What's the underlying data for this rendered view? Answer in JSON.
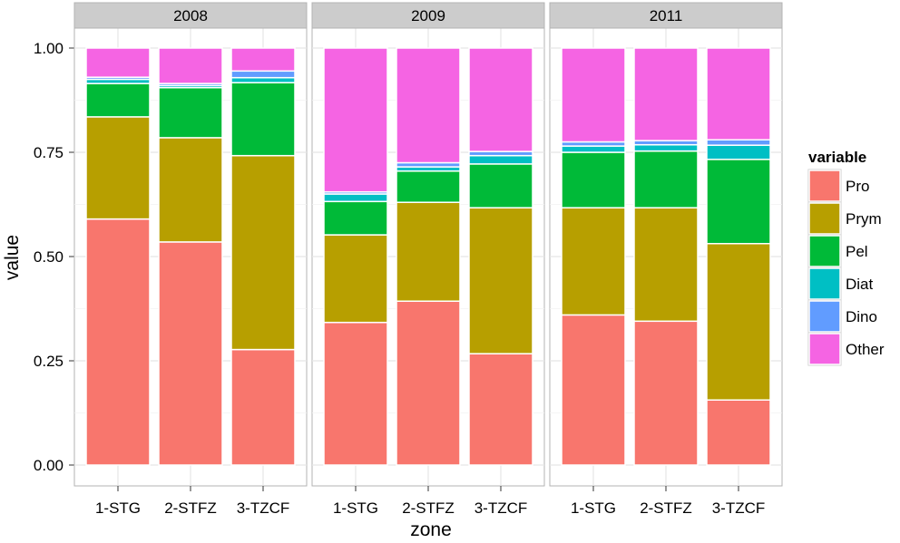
{
  "chart_data": {
    "type": "bar",
    "stacked": true,
    "facets": [
      "2008",
      "2009",
      "2011"
    ],
    "categories": [
      "1-STG",
      "2-STFZ",
      "3-TZCF"
    ],
    "xlabel": "zone",
    "ylabel": "value",
    "ylim": [
      0,
      1
    ],
    "yticks": [
      "0.00",
      "0.25",
      "0.50",
      "0.75",
      "1.00"
    ],
    "grid": true,
    "legend": {
      "title": "variable",
      "placement": "right",
      "items": [
        {
          "name": "Pro",
          "color": "#F8766D"
        },
        {
          "name": "Prym",
          "color": "#B79F00"
        },
        {
          "name": "Pel",
          "color": "#00BA38"
        },
        {
          "name": "Diat",
          "color": "#00BFC4"
        },
        {
          "name": "Dino",
          "color": "#619CFF"
        },
        {
          "name": "Other",
          "color": "#F564E3"
        }
      ]
    },
    "data": {
      "2008": {
        "1-STG": [
          0.59,
          0.245,
          0.08,
          0.01,
          0.005,
          0.07
        ],
        "2-STFZ": [
          0.535,
          0.25,
          0.12,
          0.005,
          0.005,
          0.085
        ],
        "3-TZCF": [
          0.277,
          0.465,
          0.175,
          0.012,
          0.016,
          0.055
        ]
      },
      "2009": {
        "1-STG": [
          0.342,
          0.21,
          0.08,
          0.018,
          0.005,
          0.345
        ],
        "2-STFZ": [
          0.393,
          0.237,
          0.075,
          0.01,
          0.01,
          0.275
        ],
        "3-TZCF": [
          0.267,
          0.35,
          0.105,
          0.02,
          0.01,
          0.248
        ]
      },
      "2011": {
        "1-STG": [
          0.36,
          0.257,
          0.133,
          0.015,
          0.01,
          0.225
        ],
        "2-STFZ": [
          0.345,
          0.272,
          0.136,
          0.015,
          0.01,
          0.222
        ],
        "3-TZCF": [
          0.156,
          0.375,
          0.202,
          0.034,
          0.013,
          0.22
        ]
      }
    }
  }
}
